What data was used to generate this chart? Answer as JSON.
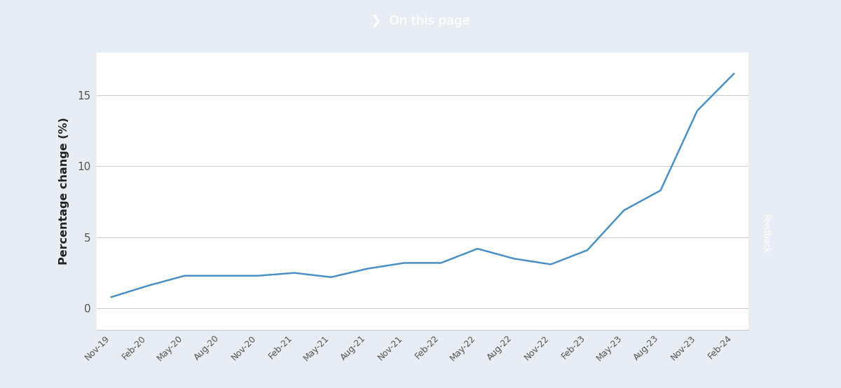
{
  "title": "❯  On this page",
  "title_bg_color": "#3d5f8a",
  "title_text_color": "#ffffff",
  "ylabel": "Percentage change (%)",
  "line_color": "#4a90c4",
  "line_width": 1.8,
  "outer_bg_color": "#e8edf2",
  "plot_bg_color": "#ffffff",
  "grid_color": "#cccccc",
  "tick_label_color": "#555555",
  "axis_label_color": "#222222",
  "ylim": [
    -1.5,
    18
  ],
  "yticks": [
    0,
    5,
    10,
    15
  ],
  "x_labels": [
    "Nov-19",
    "Feb-20",
    "May-20",
    "Aug-20",
    "Nov-20",
    "Feb-21",
    "May-21",
    "Aug-21",
    "Nov-21",
    "Feb-22",
    "May-22",
    "Aug-22",
    "Nov-22",
    "Feb-23",
    "May-23",
    "Aug-23",
    "Nov-23",
    "Feb-24"
  ],
  "values": [
    0.8,
    1.6,
    2.3,
    2.3,
    2.3,
    2.5,
    2.2,
    2.2,
    2.8,
    3.2,
    4.2,
    3.9,
    3.1,
    3.3,
    4.1,
    3.9,
    3.2,
    3.2,
    4.1,
    4.0,
    4.0,
    3.5,
    4.0,
    6.9,
    7.0,
    8.3,
    13.9,
    14.7,
    14.7,
    16.5,
    16.5
  ],
  "num_points": 18,
  "y_values": [
    0.8,
    1.6,
    2.3,
    2.3,
    2.3,
    2.5,
    2.2,
    2.8,
    3.2,
    3.2,
    4.2,
    3.5,
    3.1,
    4.1,
    6.9,
    8.3,
    13.9,
    16.5
  ],
  "feedback_bg": "#2d8653",
  "feedback_text": "Feedback"
}
